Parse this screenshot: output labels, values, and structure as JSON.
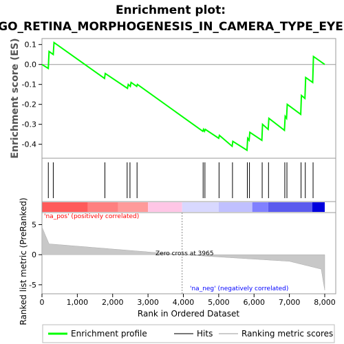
{
  "chart_data": {
    "type": "line",
    "title_line1": "Enrichment plot:",
    "title_line2": "GO_RETINA_MORPHOGENESIS_IN_CAMERA_TYPE_EYE",
    "es_panel": {
      "ylabel": "Enrichment score (ES)",
      "ylim": [
        -0.47,
        0.13
      ],
      "yticks": [
        -0.4,
        -0.3,
        -0.2,
        -0.1,
        0.0,
        0.1
      ],
      "ytick_labels": [
        "-0.4",
        "-0.3",
        "-0.2",
        "-0.1",
        "0.0",
        "0.1"
      ],
      "series_name": "Enrichment profile",
      "color": "#00ff00",
      "points": [
        [
          0,
          0.0
        ],
        [
          180,
          -0.02
        ],
        [
          200,
          0.065
        ],
        [
          320,
          0.05
        ],
        [
          340,
          0.11
        ],
        [
          1770,
          -0.07
        ],
        [
          1790,
          -0.045
        ],
        [
          2420,
          -0.12
        ],
        [
          2440,
          -0.1
        ],
        [
          2500,
          -0.11
        ],
        [
          2520,
          -0.09
        ],
        [
          2680,
          -0.11
        ],
        [
          2700,
          -0.1
        ],
        [
          4550,
          -0.335
        ],
        [
          4570,
          -0.325
        ],
        [
          4600,
          -0.335
        ],
        [
          4620,
          -0.325
        ],
        [
          5000,
          -0.37
        ],
        [
          5020,
          -0.355
        ],
        [
          5380,
          -0.41
        ],
        [
          5400,
          -0.385
        ],
        [
          5800,
          -0.43
        ],
        [
          5820,
          -0.37
        ],
        [
          5860,
          -0.38
        ],
        [
          5880,
          -0.34
        ],
        [
          6220,
          -0.38
        ],
        [
          6240,
          -0.3
        ],
        [
          6400,
          -0.325
        ],
        [
          6420,
          -0.27
        ],
        [
          6860,
          -0.33
        ],
        [
          6880,
          -0.26
        ],
        [
          6920,
          -0.27
        ],
        [
          6940,
          -0.2
        ],
        [
          7320,
          -0.25
        ],
        [
          7340,
          -0.155
        ],
        [
          7440,
          -0.17
        ],
        [
          7460,
          -0.065
        ],
        [
          7660,
          -0.09
        ],
        [
          7680,
          0.04
        ],
        [
          8000,
          0.0
        ]
      ]
    },
    "hits": [
      180,
      320,
      1780,
      2410,
      2490,
      2690,
      4560,
      4610,
      5010,
      5390,
      5810,
      5870,
      6230,
      6410,
      6870,
      6930,
      7330,
      7450,
      7670
    ],
    "rank_metric": {
      "ylabel": "Ranked list metric (PreRanked)",
      "ylim": [
        -6.5,
        7
      ],
      "yticks": [
        -5,
        0,
        5
      ],
      "ytick_labels": [
        "-5",
        "0",
        "5"
      ],
      "zero_cross_label": "Zero cross at 3965",
      "zero_cross": 3965,
      "pos_label": "'na_pos' (positively correlated)",
      "neg_label": "'na_neg' (negatively correlated)",
      "pos_color": "#ff0000",
      "neg_color": "#0000ff"
    },
    "xlabel": "Rank in Ordered Dataset",
    "xlim": [
      0,
      8000
    ],
    "xticks": [
      0,
      1000,
      2000,
      3000,
      4000,
      5000,
      6000,
      7000,
      8000
    ],
    "xtick_labels": [
      "0",
      "1,000",
      "2,000",
      "3,000",
      "4,000",
      "5,000",
      "6,000",
      "7,000",
      "8,000"
    ],
    "legend": [
      {
        "label": "Enrichment profile",
        "color": "#00ff00",
        "kind": "thick-line"
      },
      {
        "label": "Hits",
        "color": "#777777",
        "kind": "line"
      },
      {
        "label": "Ranking metric scores",
        "color": "#cccccc",
        "kind": "line"
      }
    ]
  }
}
